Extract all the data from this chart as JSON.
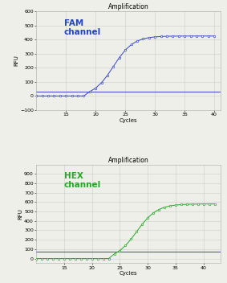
{
  "fam_title": "Amplification",
  "fam_label": "FAM\nchannel",
  "fam_xlabel": "Cycles",
  "fam_ylabel": "RFU",
  "fam_xlim": [
    10,
    41
  ],
  "fam_ylim": [
    -100,
    600
  ],
  "fam_yticks": [
    -100,
    0,
    100,
    200,
    300,
    400,
    500,
    600
  ],
  "fam_xticks": [
    15,
    20,
    25,
    30,
    35,
    40
  ],
  "fam_threshold": 30,
  "fam_color": "#3344cc",
  "fam_label_color": "#2244cc",
  "hex_title": "Amplification",
  "hex_label": "HEX\nchannel",
  "hex_xlabel": "Cycles",
  "hex_ylabel": "RFU",
  "hex_xlim": [
    10,
    43
  ],
  "hex_ylim": [
    -50,
    1000
  ],
  "hex_yticks": [
    0,
    100,
    200,
    300,
    400,
    500,
    600,
    700,
    800,
    900
  ],
  "hex_xticks": [
    15,
    20,
    25,
    30,
    35,
    40
  ],
  "hex_threshold": 75,
  "hex_color": "#22aa22",
  "hex_label_color": "#22aa22",
  "hex_threshold_color": "#4444bb",
  "bg_color": "#efefea",
  "grid_color": "#cccccc",
  "title_fontsize": 5.5,
  "label_fontsize": 7.5,
  "axis_label_fontsize": 5,
  "tick_fontsize": 4.5
}
